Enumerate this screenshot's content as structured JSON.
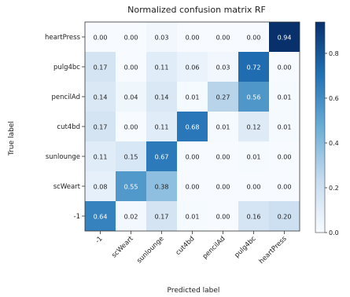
{
  "chart_data": {
    "type": "heatmap",
    "title": "Normalized confusion matrix RF",
    "xlabel": "Predicted label",
    "ylabel": "True label",
    "row_labels": [
      "heartPress",
      "pulg4bc",
      "pencilAd",
      "cut4bd",
      "sunlounge",
      "scWeart",
      "-1"
    ],
    "col_labels": [
      "-1",
      "scWeart",
      "sunlounge",
      "cut4bd",
      "pencilAd",
      "pulg4bc",
      "heartPress"
    ],
    "values": [
      [
        0.0,
        0.0,
        0.03,
        0.0,
        0.0,
        0.0,
        0.94
      ],
      [
        0.17,
        0.0,
        0.11,
        0.06,
        0.03,
        0.72,
        0.0
      ],
      [
        0.14,
        0.04,
        0.14,
        0.01,
        0.27,
        0.56,
        0.01
      ],
      [
        0.17,
        0.0,
        0.11,
        0.68,
        0.01,
        0.12,
        0.01
      ],
      [
        0.11,
        0.15,
        0.67,
        0.0,
        0.0,
        0.01,
        0.0
      ],
      [
        0.08,
        0.55,
        0.38,
        0.0,
        0.0,
        0.0,
        0.0
      ],
      [
        0.64,
        0.02,
        0.17,
        0.01,
        0.0,
        0.16,
        0.2
      ]
    ],
    "colorbar": {
      "ticks": [
        0.8,
        0.6,
        0.4,
        0.2,
        0.0
      ],
      "range": [
        0,
        0.94
      ],
      "colormap": "Blues"
    }
  }
}
